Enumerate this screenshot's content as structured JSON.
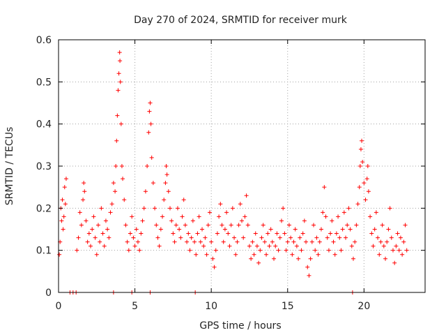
{
  "chart_data": {
    "type": "scatter",
    "title": "Day 270 of 2024, SRMTID for receiver murk",
    "xlabel": "GPS time / hours",
    "ylabel": "SRMTID / TECUs",
    "xlim": [
      0,
      24
    ],
    "ylim": [
      0,
      0.6
    ],
    "x_ticks": [
      0,
      5,
      10,
      15,
      20
    ],
    "x_tick_labels": [
      "0",
      "5",
      "10",
      "15",
      "20"
    ],
    "y_ticks": [
      0,
      0.1,
      0.2,
      0.3,
      0.4,
      0.5,
      0.6
    ],
    "y_tick_labels": [
      "0",
      "0.1",
      "0.2",
      "0.3",
      "0.4",
      "0.5",
      "0.6"
    ],
    "grid": true,
    "marker": "plus",
    "color": "#ff0000",
    "series": [
      {
        "name": "SRMTID",
        "points": [
          [
            0.05,
            0.09
          ],
          [
            0.1,
            0.12
          ],
          [
            0.15,
            0.2
          ],
          [
            0.2,
            0.17
          ],
          [
            0.25,
            0.22
          ],
          [
            0.3,
            0.15
          ],
          [
            0.35,
            0.18
          ],
          [
            0.4,
            0.25
          ],
          [
            0.45,
            0.21
          ],
          [
            0.5,
            0.27
          ],
          [
            1.2,
            0.1
          ],
          [
            1.3,
            0.13
          ],
          [
            1.4,
            0.19
          ],
          [
            1.5,
            0.16
          ],
          [
            1.6,
            0.22
          ],
          [
            1.65,
            0.26
          ],
          [
            1.7,
            0.24
          ],
          [
            1.8,
            0.17
          ],
          [
            1.9,
            0.12
          ],
          [
            2.0,
            0.14
          ],
          [
            2.1,
            0.11
          ],
          [
            2.2,
            0.15
          ],
          [
            2.3,
            0.18
          ],
          [
            2.4,
            0.13
          ],
          [
            2.5,
            0.09
          ],
          [
            2.6,
            0.16
          ],
          [
            2.7,
            0.12
          ],
          [
            2.8,
            0.2
          ],
          [
            2.9,
            0.14
          ],
          [
            3.0,
            0.11
          ],
          [
            3.1,
            0.17
          ],
          [
            3.2,
            0.15
          ],
          [
            3.3,
            0.13
          ],
          [
            3.4,
            0.19
          ],
          [
            3.5,
            0.21
          ],
          [
            3.6,
            0.26
          ],
          [
            3.7,
            0.24
          ],
          [
            3.75,
            0.3
          ],
          [
            3.8,
            0.36
          ],
          [
            3.85,
            0.42
          ],
          [
            3.9,
            0.48
          ],
          [
            3.95,
            0.52
          ],
          [
            4.0,
            0.57
          ],
          [
            4.02,
            0.55
          ],
          [
            4.05,
            0.5
          ],
          [
            4.1,
            0.4
          ],
          [
            4.15,
            0.3
          ],
          [
            4.2,
            0.27
          ],
          [
            4.3,
            0.22
          ],
          [
            4.4,
            0.16
          ],
          [
            4.5,
            0.12
          ],
          [
            4.6,
            0.1
          ],
          [
            4.7,
            0.14
          ],
          [
            4.8,
            0.18
          ],
          [
            4.9,
            0.13
          ],
          [
            5.0,
            0.11
          ],
          [
            5.1,
            0.15
          ],
          [
            5.2,
            0.12
          ],
          [
            5.3,
            0.1
          ],
          [
            5.4,
            0.14
          ],
          [
            5.5,
            0.17
          ],
          [
            5.6,
            0.2
          ],
          [
            5.7,
            0.24
          ],
          [
            5.8,
            0.3
          ],
          [
            5.9,
            0.38
          ],
          [
            5.95,
            0.43
          ],
          [
            6.0,
            0.45
          ],
          [
            6.05,
            0.4
          ],
          [
            6.1,
            0.32
          ],
          [
            6.2,
            0.26
          ],
          [
            6.3,
            0.2
          ],
          [
            6.4,
            0.16
          ],
          [
            6.5,
            0.13
          ],
          [
            6.6,
            0.11
          ],
          [
            6.7,
            0.15
          ],
          [
            6.8,
            0.18
          ],
          [
            6.9,
            0.22
          ],
          [
            7.0,
            0.26
          ],
          [
            7.05,
            0.3
          ],
          [
            7.1,
            0.28
          ],
          [
            7.2,
            0.24
          ],
          [
            7.3,
            0.2
          ],
          [
            7.4,
            0.17
          ],
          [
            7.5,
            0.14
          ],
          [
            7.6,
            0.12
          ],
          [
            7.7,
            0.16
          ],
          [
            7.8,
            0.2
          ],
          [
            7.9,
            0.15
          ],
          [
            8.0,
            0.13
          ],
          [
            8.1,
            0.18
          ],
          [
            8.2,
            0.22
          ],
          [
            8.3,
            0.16
          ],
          [
            8.4,
            0.12
          ],
          [
            8.5,
            0.14
          ],
          [
            8.6,
            0.1
          ],
          [
            8.7,
            0.13
          ],
          [
            8.8,
            0.17
          ],
          [
            8.9,
            0.12
          ],
          [
            9.0,
            0.09
          ],
          [
            9.1,
            0.14
          ],
          [
            9.2,
            0.18
          ],
          [
            9.3,
            0.12
          ],
          [
            9.4,
            0.15
          ],
          [
            9.5,
            0.11
          ],
          [
            9.6,
            0.13
          ],
          [
            9.7,
            0.09
          ],
          [
            9.8,
            0.16
          ],
          [
            9.9,
            0.19
          ],
          [
            10.0,
            0.12
          ],
          [
            10.1,
            0.08
          ],
          [
            10.2,
            0.06
          ],
          [
            10.3,
            0.1
          ],
          [
            10.4,
            0.14
          ],
          [
            10.5,
            0.18
          ],
          [
            10.6,
            0.21
          ],
          [
            10.7,
            0.16
          ],
          [
            10.8,
            0.12
          ],
          [
            10.9,
            0.15
          ],
          [
            11.0,
            0.19
          ],
          [
            11.1,
            0.14
          ],
          [
            11.2,
            0.11
          ],
          [
            11.3,
            0.16
          ],
          [
            11.4,
            0.2
          ],
          [
            11.5,
            0.13
          ],
          [
            11.6,
            0.09
          ],
          [
            11.7,
            0.12
          ],
          [
            11.8,
            0.16
          ],
          [
            11.9,
            0.21
          ],
          [
            12.0,
            0.17
          ],
          [
            12.1,
            0.13
          ],
          [
            12.2,
            0.18
          ],
          [
            12.3,
            0.23
          ],
          [
            12.4,
            0.16
          ],
          [
            12.5,
            0.11
          ],
          [
            12.6,
            0.08
          ],
          [
            12.7,
            0.12
          ],
          [
            12.8,
            0.09
          ],
          [
            12.9,
            0.14
          ],
          [
            13.0,
            0.11
          ],
          [
            13.1,
            0.07
          ],
          [
            13.2,
            0.1
          ],
          [
            13.3,
            0.13
          ],
          [
            13.4,
            0.16
          ],
          [
            13.5,
            0.12
          ],
          [
            13.6,
            0.09
          ],
          [
            13.7,
            0.14
          ],
          [
            13.8,
            0.11
          ],
          [
            13.9,
            0.15
          ],
          [
            14.0,
            0.12
          ],
          [
            14.1,
            0.08
          ],
          [
            14.2,
            0.11
          ],
          [
            14.3,
            0.14
          ],
          [
            14.4,
            0.1
          ],
          [
            14.5,
            0.13
          ],
          [
            14.6,
            0.17
          ],
          [
            14.7,
            0.2
          ],
          [
            14.8,
            0.14
          ],
          [
            14.9,
            0.1
          ],
          [
            15.0,
            0.12
          ],
          [
            15.1,
            0.16
          ],
          [
            15.2,
            0.13
          ],
          [
            15.3,
            0.09
          ],
          [
            15.4,
            0.12
          ],
          [
            15.5,
            0.15
          ],
          [
            15.6,
            0.11
          ],
          [
            15.7,
            0.08
          ],
          [
            15.8,
            0.13
          ],
          [
            15.9,
            0.1
          ],
          [
            16.0,
            0.14
          ],
          [
            16.1,
            0.17
          ],
          [
            16.2,
            0.12
          ],
          [
            16.3,
            0.06
          ],
          [
            16.4,
            0.04
          ],
          [
            16.5,
            0.08
          ],
          [
            16.6,
            0.12
          ],
          [
            16.7,
            0.16
          ],
          [
            16.8,
            0.1
          ],
          [
            16.9,
            0.13
          ],
          [
            17.0,
            0.09
          ],
          [
            17.1,
            0.12
          ],
          [
            17.2,
            0.15
          ],
          [
            17.3,
            0.19
          ],
          [
            17.4,
            0.25
          ],
          [
            17.5,
            0.18
          ],
          [
            17.6,
            0.13
          ],
          [
            17.7,
            0.1
          ],
          [
            17.8,
            0.14
          ],
          [
            17.9,
            0.17
          ],
          [
            18.0,
            0.12
          ],
          [
            18.1,
            0.09
          ],
          [
            18.2,
            0.14
          ],
          [
            18.3,
            0.18
          ],
          [
            18.4,
            0.13
          ],
          [
            18.5,
            0.1
          ],
          [
            18.6,
            0.15
          ],
          [
            18.7,
            0.19
          ],
          [
            18.8,
            0.13
          ],
          [
            18.9,
            0.16
          ],
          [
            19.0,
            0.2
          ],
          [
            19.1,
            0.15
          ],
          [
            19.2,
            0.11
          ],
          [
            19.3,
            0.08
          ],
          [
            19.4,
            0.12
          ],
          [
            19.5,
            0.16
          ],
          [
            19.6,
            0.21
          ],
          [
            19.7,
            0.25
          ],
          [
            19.75,
            0.3
          ],
          [
            19.8,
            0.34
          ],
          [
            19.85,
            0.36
          ],
          [
            19.9,
            0.31
          ],
          [
            20.0,
            0.26
          ],
          [
            20.1,
            0.22
          ],
          [
            20.2,
            0.27
          ],
          [
            20.25,
            0.3
          ],
          [
            20.3,
            0.24
          ],
          [
            20.4,
            0.18
          ],
          [
            20.5,
            0.14
          ],
          [
            20.6,
            0.11
          ],
          [
            20.7,
            0.15
          ],
          [
            20.8,
            0.19
          ],
          [
            20.9,
            0.13
          ],
          [
            21.0,
            0.09
          ],
          [
            21.1,
            0.12
          ],
          [
            21.2,
            0.16
          ],
          [
            21.3,
            0.11
          ],
          [
            21.4,
            0.08
          ],
          [
            21.5,
            0.12
          ],
          [
            21.6,
            0.15
          ],
          [
            21.7,
            0.2
          ],
          [
            21.8,
            0.13
          ],
          [
            21.9,
            0.1
          ],
          [
            22.0,
            0.07
          ],
          [
            22.1,
            0.11
          ],
          [
            22.2,
            0.14
          ],
          [
            22.3,
            0.1
          ],
          [
            22.4,
            0.13
          ],
          [
            22.5,
            0.09
          ],
          [
            22.6,
            0.12
          ],
          [
            22.7,
            0.16
          ],
          [
            22.8,
            0.1
          ]
        ]
      }
    ],
    "zero_markers_x": [
      0.75,
      0.95,
      1.15,
      3.6,
      4.8,
      6.0,
      8.95,
      19.25
    ]
  }
}
